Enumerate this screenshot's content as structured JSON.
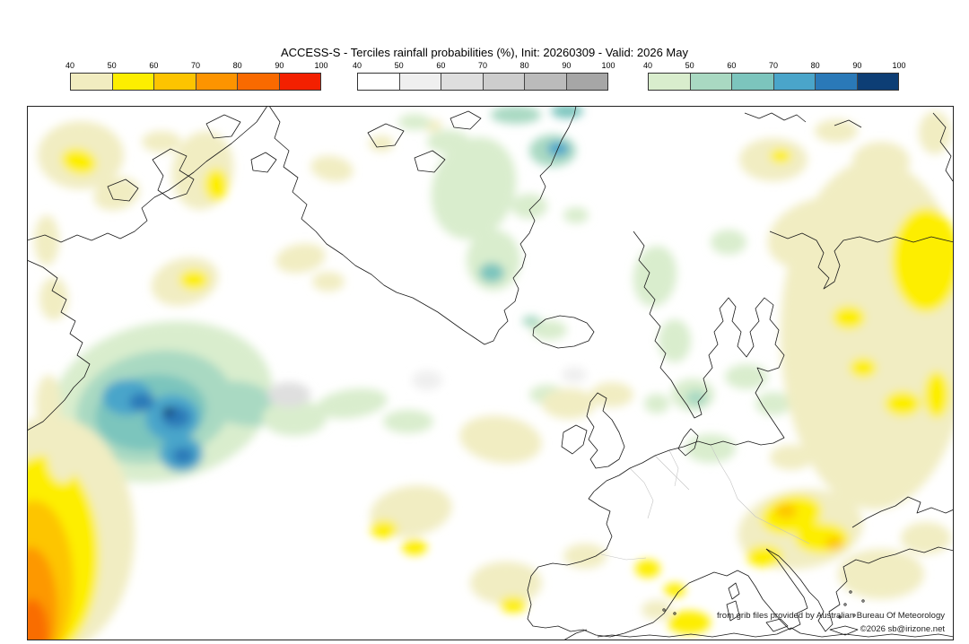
{
  "title": "ACCESS-S - Terciles rainfall probabilities (%), Init: 20260309 - Valid: 2026 May",
  "legend": {
    "bars": [
      {
        "id": "dry-terciles",
        "ticks": [
          "40",
          "50",
          "60",
          "70",
          "80",
          "90",
          "100"
        ],
        "colors": [
          "#f1ecc0",
          "#fdee00",
          "#fdc400",
          "#fd9400",
          "#f96a00",
          "#f32000"
        ]
      },
      {
        "id": "neutral-terciles",
        "ticks": [
          "40",
          "50",
          "60",
          "70",
          "80",
          "90",
          "100"
        ],
        "colors": [
          "#ffffff",
          "#efefef",
          "#dedede",
          "#cdcdcd",
          "#bbbbbb",
          "#a6a6a6"
        ]
      },
      {
        "id": "wet-terciles",
        "ticks": [
          "40",
          "50",
          "60",
          "70",
          "80",
          "90",
          "100"
        ],
        "colors": [
          "#d9edcd",
          "#a9d9c2",
          "#7cc5bd",
          "#4aa5ca",
          "#2a79b8",
          "#0d3e75"
        ]
      }
    ]
  },
  "footer": {
    "credit": "from grib files provided by Australian Bureau Of Meteorology",
    "copyright": "©2026 sb@irizone.net"
  },
  "map": {
    "palette": {
      "d1": "#f1edc2",
      "d2": "#fdee00",
      "d3": "#fdc500",
      "d4": "#fd9800",
      "d5": "#f96d02",
      "d6": "#f32000",
      "n1": "#efefef",
      "n2": "#dfdfdf",
      "w1": "#d9edcd",
      "w2": "#a9d9c2",
      "w3": "#7cc5bd",
      "w4": "#4aa5ca",
      "w5": "#2a79b8",
      "w6": "#0d3e75"
    },
    "blobs": [
      [
        60,
        55,
        48,
        38,
        0,
        "d1"
      ],
      [
        58,
        62,
        20,
        14,
        15,
        "d2"
      ],
      [
        100,
        98,
        26,
        18,
        -15,
        "d1"
      ],
      [
        196,
        72,
        34,
        44,
        10,
        "d1"
      ],
      [
        211,
        88,
        13,
        18,
        0,
        "d2"
      ],
      [
        150,
        40,
        22,
        12,
        0,
        "d1"
      ],
      [
        176,
        196,
        38,
        26,
        -15,
        "d1"
      ],
      [
        186,
        194,
        16,
        11,
        0,
        "d2"
      ],
      [
        22,
        150,
        14,
        28,
        0,
        "d1"
      ],
      [
        30,
        215,
        16,
        24,
        0,
        "d1"
      ],
      [
        340,
        70,
        24,
        14,
        10,
        "d1"
      ],
      [
        395,
        42,
        14,
        9,
        0,
        "d1"
      ],
      [
        452,
        22,
        11,
        7,
        0,
        "d1"
      ],
      [
        305,
        170,
        28,
        16,
        -10,
        "d1"
      ],
      [
        336,
        196,
        18,
        11,
        0,
        "d1"
      ],
      [
        150,
        330,
        125,
        88,
        -12,
        "w1"
      ],
      [
        142,
        336,
        88,
        62,
        -12,
        "w2"
      ],
      [
        138,
        342,
        62,
        42,
        -8,
        "w3"
      ],
      [
        112,
        325,
        28,
        20,
        0,
        "w4"
      ],
      [
        162,
        348,
        30,
        26,
        0,
        "w4"
      ],
      [
        128,
        330,
        14,
        10,
        0,
        "w5"
      ],
      [
        166,
        347,
        16,
        12,
        0,
        "w5"
      ],
      [
        158,
        341,
        7,
        5,
        0,
        "w6"
      ],
      [
        172,
        388,
        24,
        20,
        0,
        "w4"
      ],
      [
        174,
        390,
        12,
        9,
        0,
        "w5"
      ],
      [
        240,
        332,
        42,
        24,
        12,
        "w2"
      ],
      [
        298,
        348,
        36,
        20,
        0,
        "w1"
      ],
      [
        362,
        332,
        40,
        16,
        -8,
        "w1"
      ],
      [
        425,
        352,
        28,
        13,
        0,
        "w1"
      ],
      [
        498,
        92,
        46,
        58,
        18,
        "w1"
      ],
      [
        520,
        172,
        30,
        34,
        0,
        "w1"
      ],
      [
        518,
        186,
        14,
        11,
        0,
        "w3"
      ],
      [
        586,
        50,
        26,
        18,
        0,
        "w2"
      ],
      [
        592,
        48,
        12,
        8,
        0,
        "w4"
      ],
      [
        560,
        112,
        20,
        14,
        0,
        "w1"
      ],
      [
        612,
        122,
        14,
        9,
        0,
        "w1"
      ],
      [
        470,
        40,
        24,
        13,
        0,
        "w1"
      ],
      [
        432,
        18,
        18,
        9,
        0,
        "w1"
      ],
      [
        545,
        10,
        28,
        10,
        0,
        "w2"
      ],
      [
        602,
        6,
        18,
        8,
        0,
        "w3"
      ],
      [
        582,
        250,
        20,
        11,
        0,
        "w1"
      ],
      [
        562,
        240,
        10,
        6,
        0,
        "w2"
      ],
      [
        580,
        322,
        20,
        11,
        0,
        "w1"
      ],
      [
        700,
        190,
        24,
        34,
        8,
        "w1"
      ],
      [
        722,
        262,
        18,
        24,
        0,
        "w1"
      ],
      [
        742,
        322,
        24,
        18,
        0,
        "w1"
      ],
      [
        746,
        326,
        12,
        9,
        0,
        "w2"
      ],
      [
        702,
        332,
        14,
        11,
        0,
        "w1"
      ],
      [
        782,
        152,
        20,
        14,
        0,
        "w1"
      ],
      [
        802,
        302,
        24,
        14,
        0,
        "w1"
      ],
      [
        832,
        332,
        20,
        13,
        0,
        "w1"
      ],
      [
        762,
        382,
        28,
        16,
        0,
        "w1"
      ],
      [
        292,
        322,
        24,
        14,
        0,
        "n2"
      ],
      [
        446,
        306,
        17,
        11,
        0,
        "n1"
      ],
      [
        610,
        300,
        14,
        9,
        0,
        "n1"
      ],
      [
        528,
        372,
        46,
        26,
        8,
        "d1"
      ],
      [
        604,
        332,
        30,
        17,
        0,
        "d1"
      ],
      [
        652,
        322,
        24,
        14,
        0,
        "d1"
      ],
      [
        428,
        452,
        46,
        28,
        -10,
        "d1"
      ],
      [
        398,
        472,
        15,
        10,
        0,
        "d2"
      ],
      [
        432,
        492,
        14,
        9,
        0,
        "d2"
      ],
      [
        534,
        532,
        40,
        24,
        0,
        "d1"
      ],
      [
        542,
        556,
        15,
        9,
        0,
        "d2"
      ],
      [
        622,
        502,
        24,
        14,
        0,
        "d1"
      ],
      [
        692,
        516,
        14,
        10,
        0,
        "d2"
      ],
      [
        722,
        540,
        12,
        8,
        0,
        "d2"
      ],
      [
        28,
        478,
        92,
        132,
        0,
        "d1"
      ],
      [
        18,
        502,
        62,
        112,
        0,
        "d2"
      ],
      [
        8,
        532,
        44,
        92,
        0,
        "d3"
      ],
      [
        4,
        562,
        30,
        70,
        0,
        "d4"
      ],
      [
        6,
        588,
        18,
        38,
        0,
        "d5"
      ],
      [
        24,
        332,
        14,
        32,
        0,
        "d1"
      ],
      [
        40,
        392,
        17,
        28,
        0,
        "d1"
      ],
      [
        945,
        255,
        105,
        195,
        0,
        "d1"
      ],
      [
        1002,
        172,
        38,
        58,
        0,
        "d2"
      ],
      [
        916,
        236,
        18,
        13,
        0,
        "d2"
      ],
      [
        932,
        292,
        15,
        11,
        0,
        "d2"
      ],
      [
        976,
        332,
        20,
        14,
        0,
        "d2"
      ],
      [
        1014,
        322,
        14,
        26,
        0,
        "d2"
      ],
      [
        882,
        142,
        58,
        38,
        -18,
        "d1"
      ],
      [
        832,
        60,
        38,
        24,
        0,
        "d1"
      ],
      [
        840,
        56,
        12,
        8,
        0,
        "d2"
      ],
      [
        952,
        62,
        32,
        22,
        0,
        "d1"
      ],
      [
        902,
        28,
        24,
        13,
        0,
        "d1"
      ],
      [
        1012,
        30,
        18,
        24,
        0,
        "d1"
      ],
      [
        852,
        392,
        24,
        14,
        0,
        "d1"
      ],
      [
        862,
        472,
        70,
        44,
        -8,
        "d1"
      ],
      [
        852,
        456,
        34,
        21,
        -12,
        "d2"
      ],
      [
        886,
        482,
        30,
        17,
        0,
        "d2"
      ],
      [
        846,
        452,
        12,
        8,
        0,
        "d3"
      ],
      [
        900,
        488,
        10,
        7,
        0,
        "d3"
      ],
      [
        822,
        502,
        20,
        12,
        0,
        "d2"
      ],
      [
        952,
        522,
        48,
        28,
        0,
        "d1"
      ],
      [
        1002,
        482,
        28,
        18,
        0,
        "d1"
      ],
      [
        738,
        576,
        24,
        13,
        0,
        "d2"
      ],
      [
        702,
        562,
        17,
        11,
        0,
        "d1"
      ]
    ]
  }
}
